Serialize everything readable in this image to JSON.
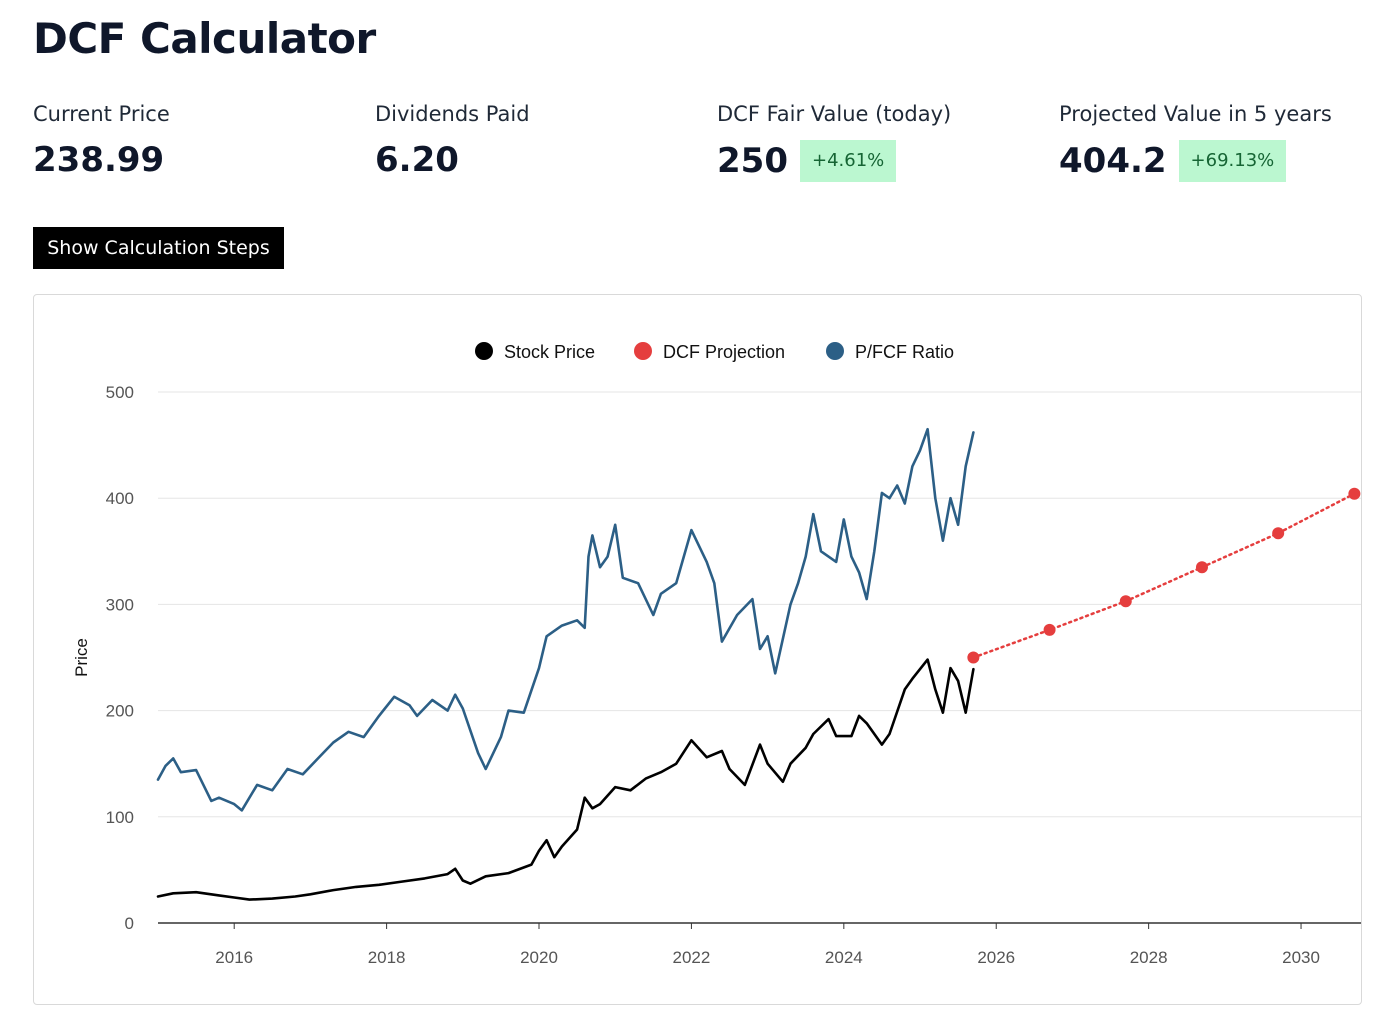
{
  "page": {
    "title": "DCF Calculator"
  },
  "metrics": [
    {
      "label": "Current Price",
      "value": "238.99",
      "badge": ""
    },
    {
      "label": "Dividends Paid",
      "value": "6.20",
      "badge": ""
    },
    {
      "label": "DCF Fair Value (today)",
      "value": "250",
      "badge": "+4.61%"
    },
    {
      "label": "Projected Value in 5 years",
      "value": "404.2",
      "badge": "+69.13%"
    }
  ],
  "actions": {
    "show_steps_label": "Show Calculation Steps"
  },
  "colors": {
    "stock": "#000000",
    "dcf": "#e53e3e",
    "pfcf": "#2c5f86",
    "badge_bg": "#bbf7d0",
    "badge_text": "#166534"
  },
  "chart_data": {
    "type": "line",
    "ylabel": "Price",
    "xlabel": "",
    "ylim": [
      0,
      500
    ],
    "yticks": [
      0,
      100,
      200,
      300,
      400,
      500
    ],
    "xlim": [
      2015.0,
      2030.8
    ],
    "xticks": [
      "2016",
      "2018",
      "2020",
      "2022",
      "2024",
      "2026",
      "2028",
      "2030"
    ],
    "legend_position": "top-center",
    "grid": "horizontal",
    "series": [
      {
        "name": "Stock Price",
        "color": "#000000",
        "style": "line",
        "points": [
          [
            2015.0,
            25
          ],
          [
            2015.2,
            28
          ],
          [
            2015.5,
            29
          ],
          [
            2015.8,
            26
          ],
          [
            2016.0,
            24
          ],
          [
            2016.2,
            22
          ],
          [
            2016.5,
            23
          ],
          [
            2016.8,
            25
          ],
          [
            2017.0,
            27
          ],
          [
            2017.3,
            31
          ],
          [
            2017.6,
            34
          ],
          [
            2017.9,
            36
          ],
          [
            2018.2,
            39
          ],
          [
            2018.5,
            42
          ],
          [
            2018.8,
            46
          ],
          [
            2018.9,
            51
          ],
          [
            2019.0,
            40
          ],
          [
            2019.1,
            37
          ],
          [
            2019.3,
            44
          ],
          [
            2019.6,
            47
          ],
          [
            2019.9,
            55
          ],
          [
            2020.0,
            68
          ],
          [
            2020.1,
            78
          ],
          [
            2020.2,
            62
          ],
          [
            2020.3,
            72
          ],
          [
            2020.5,
            88
          ],
          [
            2020.6,
            118
          ],
          [
            2020.7,
            108
          ],
          [
            2020.8,
            112
          ],
          [
            2021.0,
            128
          ],
          [
            2021.2,
            125
          ],
          [
            2021.4,
            136
          ],
          [
            2021.6,
            142
          ],
          [
            2021.8,
            150
          ],
          [
            2022.0,
            172
          ],
          [
            2022.2,
            156
          ],
          [
            2022.4,
            162
          ],
          [
            2022.5,
            145
          ],
          [
            2022.7,
            130
          ],
          [
            2022.9,
            168
          ],
          [
            2023.0,
            150
          ],
          [
            2023.2,
            133
          ],
          [
            2023.3,
            150
          ],
          [
            2023.5,
            165
          ],
          [
            2023.6,
            178
          ],
          [
            2023.8,
            192
          ],
          [
            2023.9,
            176
          ],
          [
            2024.1,
            176
          ],
          [
            2024.2,
            195
          ],
          [
            2024.3,
            188
          ],
          [
            2024.5,
            168
          ],
          [
            2024.6,
            178
          ],
          [
            2024.8,
            220
          ],
          [
            2024.9,
            230
          ],
          [
            2025.1,
            248
          ],
          [
            2025.2,
            220
          ],
          [
            2025.3,
            198
          ],
          [
            2025.4,
            240
          ],
          [
            2025.5,
            228
          ],
          [
            2025.6,
            198
          ],
          [
            2025.7,
            238.99
          ]
        ]
      },
      {
        "name": "DCF Projection",
        "color": "#e53e3e",
        "style": "dotted-markers",
        "points": [
          [
            2025.7,
            250
          ],
          [
            2026.7,
            276
          ],
          [
            2027.7,
            303
          ],
          [
            2028.7,
            335
          ],
          [
            2029.7,
            367
          ],
          [
            2030.7,
            404.2
          ]
        ]
      },
      {
        "name": "P/FCF Ratio",
        "color": "#2c5f86",
        "style": "line",
        "points": [
          [
            2015.0,
            135
          ],
          [
            2015.1,
            148
          ],
          [
            2015.2,
            155
          ],
          [
            2015.3,
            142
          ],
          [
            2015.5,
            144
          ],
          [
            2015.7,
            115
          ],
          [
            2015.8,
            118
          ],
          [
            2016.0,
            112
          ],
          [
            2016.1,
            106
          ],
          [
            2016.3,
            130
          ],
          [
            2016.5,
            125
          ],
          [
            2016.7,
            145
          ],
          [
            2016.9,
            140
          ],
          [
            2017.1,
            155
          ],
          [
            2017.3,
            170
          ],
          [
            2017.5,
            180
          ],
          [
            2017.7,
            175
          ],
          [
            2017.9,
            195
          ],
          [
            2018.1,
            213
          ],
          [
            2018.3,
            205
          ],
          [
            2018.4,
            195
          ],
          [
            2018.6,
            210
          ],
          [
            2018.8,
            200
          ],
          [
            2018.9,
            215
          ],
          [
            2019.0,
            202
          ],
          [
            2019.2,
            160
          ],
          [
            2019.3,
            145
          ],
          [
            2019.5,
            175
          ],
          [
            2019.6,
            200
          ],
          [
            2019.8,
            198
          ],
          [
            2020.0,
            240
          ],
          [
            2020.1,
            270
          ],
          [
            2020.3,
            280
          ],
          [
            2020.5,
            285
          ],
          [
            2020.6,
            278
          ],
          [
            2020.65,
            345
          ],
          [
            2020.7,
            365
          ],
          [
            2020.8,
            335
          ],
          [
            2020.9,
            345
          ],
          [
            2021.0,
            375
          ],
          [
            2021.1,
            325
          ],
          [
            2021.3,
            320
          ],
          [
            2021.5,
            290
          ],
          [
            2021.6,
            310
          ],
          [
            2021.8,
            320
          ],
          [
            2021.9,
            345
          ],
          [
            2022.0,
            370
          ],
          [
            2022.2,
            340
          ],
          [
            2022.3,
            320
          ],
          [
            2022.4,
            265
          ],
          [
            2022.6,
            290
          ],
          [
            2022.8,
            305
          ],
          [
            2022.9,
            258
          ],
          [
            2023.0,
            270
          ],
          [
            2023.1,
            235
          ],
          [
            2023.3,
            300
          ],
          [
            2023.4,
            320
          ],
          [
            2023.5,
            345
          ],
          [
            2023.6,
            385
          ],
          [
            2023.7,
            350
          ],
          [
            2023.9,
            340
          ],
          [
            2024.0,
            380
          ],
          [
            2024.1,
            345
          ],
          [
            2024.2,
            330
          ],
          [
            2024.3,
            305
          ],
          [
            2024.4,
            350
          ],
          [
            2024.5,
            405
          ],
          [
            2024.6,
            400
          ],
          [
            2024.7,
            412
          ],
          [
            2024.8,
            395
          ],
          [
            2024.9,
            430
          ],
          [
            2025.0,
            445
          ],
          [
            2025.1,
            465
          ],
          [
            2025.2,
            400
          ],
          [
            2025.3,
            360
          ],
          [
            2025.4,
            400
          ],
          [
            2025.5,
            375
          ],
          [
            2025.6,
            430
          ],
          [
            2025.7,
            462
          ]
        ]
      }
    ]
  }
}
